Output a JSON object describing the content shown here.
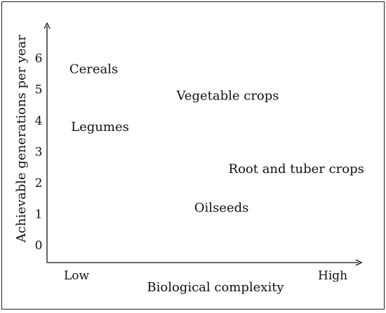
{
  "chart_data": {
    "type": "scatter",
    "title": "",
    "xlabel": "Biological complexity",
    "ylabel": "Achievable generations per year",
    "x_tick_labels": [
      "Low",
      "High"
    ],
    "y_ticks": [
      "0",
      "1",
      "2",
      "3",
      "4",
      "5",
      "6"
    ],
    "ylim": [
      0,
      6
    ],
    "xlim": [
      0,
      1
    ],
    "grid": false,
    "points": [
      {
        "label": "Cereals",
        "x": 0.15,
        "y": 5.65
      },
      {
        "label": "Vegetable crops",
        "x": 0.58,
        "y": 4.8
      },
      {
        "label": "Legumes",
        "x": 0.17,
        "y": 3.8
      },
      {
        "label": "Root and tuber crops",
        "x": 0.8,
        "y": 2.45
      },
      {
        "label": "Oilseeds",
        "x": 0.56,
        "y": 1.2
      }
    ]
  },
  "colors": {
    "axis": "#111111",
    "text": "#111111",
    "border": "#222222"
  }
}
